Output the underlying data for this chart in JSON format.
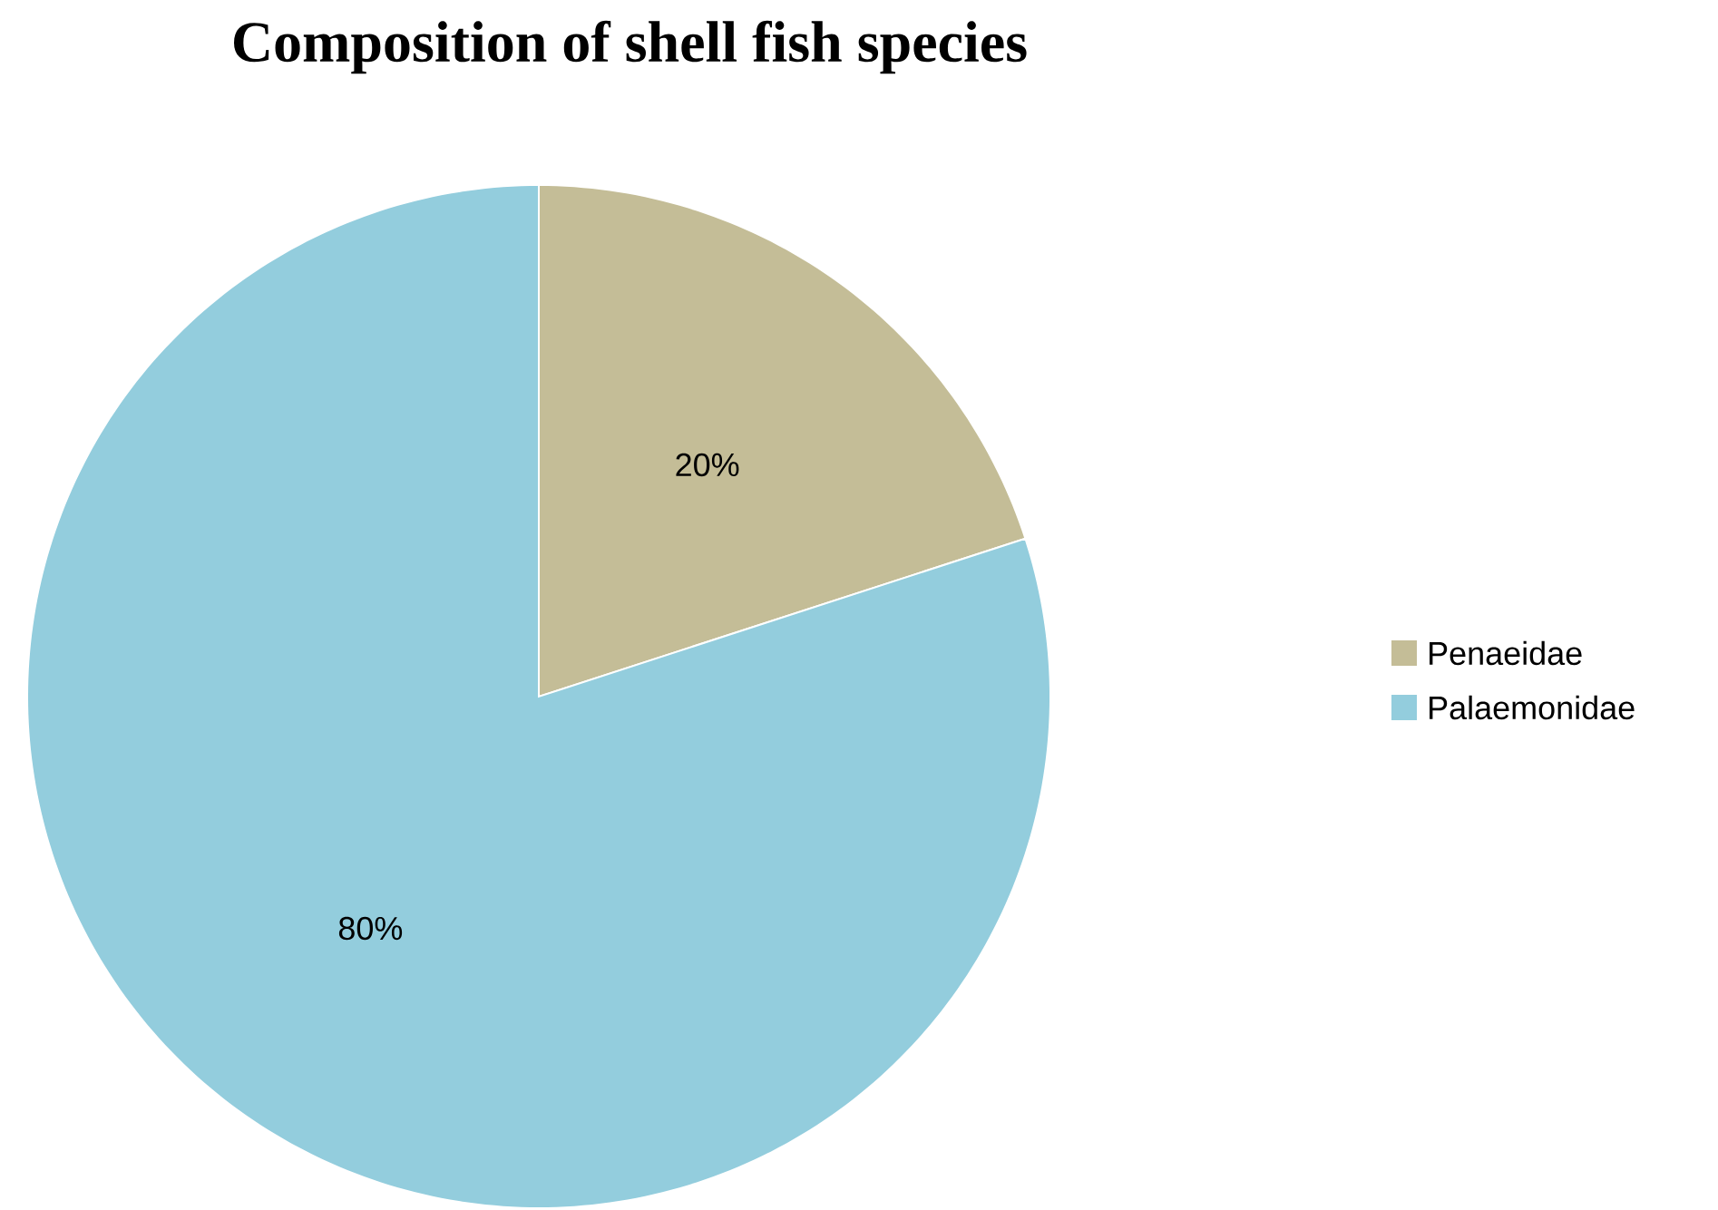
{
  "chart_data": {
    "type": "pie",
    "title": "Composition of shell fish species",
    "categories": [
      "Penaeidae",
      "Palaemonidae"
    ],
    "values": [
      20,
      80
    ],
    "colors": [
      "#c4bd97",
      "#93cddd"
    ],
    "value_labels": [
      "20%",
      "80%"
    ],
    "legend": "right"
  }
}
